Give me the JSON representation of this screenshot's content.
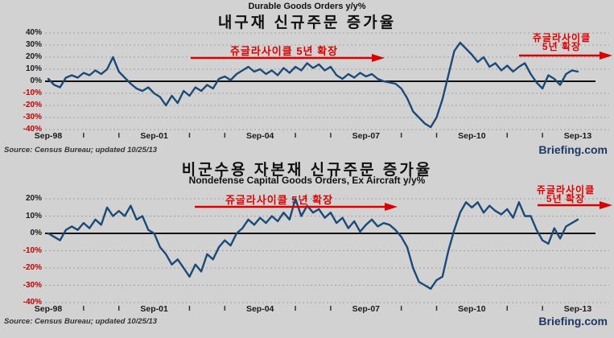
{
  "colors": {
    "background": "#d2d2d2",
    "line": "#1b4a78",
    "annotation_red": "#dd0000",
    "negative_tick_label": "#c00000",
    "positive_tick_label": "#1a1a1a",
    "brand_navy": "#1f3864",
    "grid": "#a0a0a0",
    "zero_line": "#111111"
  },
  "source_note": "Source: Census Bureau; updated 10/25/13",
  "brand": "Briefing.com",
  "annotations": {
    "juglar_mid": "쥬글라사이클 5년 확장",
    "juglar_right_line1": "쥬글라사이클",
    "juglar_right_line2": "5년 확장"
  },
  "chart_data": [
    {
      "type": "line",
      "title_en": "Durable Goods Orders y/y%",
      "title_ko": "내구재 신규주문 증가율",
      "x_range": [
        "Sep-98",
        "Sep-13"
      ],
      "x_tick_labels": [
        "Sep-98",
        "Sep-01",
        "Sep-04",
        "Sep-07",
        "Sep-10",
        "Sep-13"
      ],
      "y_tick_labels": [
        "40%",
        "30%",
        "20%",
        "10%",
        "0%",
        "-10%",
        "-20%",
        "-30%",
        "-40%"
      ],
      "ylim": [
        -40,
        40
      ],
      "grid": "horizontal-dotted",
      "legend": "none",
      "series": [
        {
          "name": "Durable Goods Orders y/y%",
          "values": [
            2,
            -3,
            -5,
            3,
            5,
            3,
            7,
            5,
            9,
            6,
            10,
            20,
            8,
            3,
            -2,
            -6,
            -8,
            -5,
            -10,
            -13,
            -20,
            -12,
            -18,
            -8,
            -12,
            -5,
            -8,
            -3,
            -6,
            2,
            4,
            1,
            6,
            9,
            12,
            8,
            10,
            6,
            9,
            5,
            11,
            7,
            12,
            9,
            15,
            11,
            14,
            9,
            12,
            5,
            2,
            6,
            3,
            7,
            4,
            6,
            2,
            0,
            -1,
            -2,
            -6,
            -14,
            -25,
            -30,
            -35,
            -38,
            -30,
            -15,
            5,
            25,
            32,
            27,
            22,
            16,
            20,
            12,
            15,
            9,
            13,
            8,
            12,
            15,
            6,
            -1,
            -6,
            5,
            2,
            -3,
            6,
            9,
            8
          ]
        }
      ]
    },
    {
      "type": "line",
      "title_en": "Nondefense Capital Goods Orders, Ex Aircraft y/y%",
      "title_ko": "비군수용 자본재 신규주문 증가율",
      "x_range": [
        "Sep-98",
        "Sep-13"
      ],
      "x_tick_labels": [
        "Sep-98",
        "Sep-01",
        "Sep-04",
        "Sep-07",
        "Sep-10",
        "Sep-13"
      ],
      "y_tick_labels": [
        "20%",
        "10%",
        "0%",
        "-10%",
        "-20%",
        "-30%",
        "-40%"
      ],
      "ylim": [
        -40,
        20
      ],
      "grid": "horizontal-dotted",
      "legend": "none",
      "series": [
        {
          "name": "Nondefense Capital Goods Orders, Ex Aircraft y/y%",
          "values": [
            0,
            -2,
            -4,
            2,
            4,
            2,
            6,
            3,
            8,
            5,
            15,
            10,
            13,
            10,
            16,
            8,
            10,
            2,
            0,
            -8,
            -12,
            -18,
            -15,
            -20,
            -25,
            -18,
            -22,
            -12,
            -15,
            -8,
            -4,
            -7,
            0,
            3,
            8,
            5,
            9,
            6,
            10,
            7,
            12,
            8,
            20,
            10,
            16,
            12,
            14,
            9,
            12,
            6,
            9,
            3,
            7,
            1,
            5,
            8,
            4,
            6,
            5,
            2,
            -2,
            -8,
            -20,
            -28,
            -30,
            -32,
            -27,
            -25,
            -10,
            2,
            12,
            18,
            15,
            18,
            12,
            16,
            13,
            11,
            14,
            9,
            18,
            10,
            10,
            2,
            -4,
            -6,
            3,
            -3,
            4,
            6,
            8
          ]
        }
      ]
    }
  ]
}
